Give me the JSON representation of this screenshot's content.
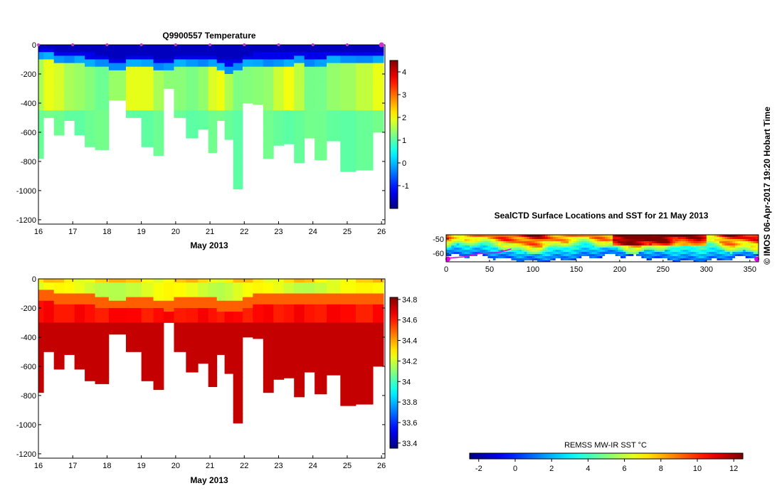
{
  "credit": "© IMOS 06-Apr-2017 19:20 Hobart Time",
  "colors": {
    "magenta": "#e000e0",
    "land": "#ffffff",
    "profile_marker": "#cc33cc"
  },
  "chart_data": [
    {
      "type": "heatmap",
      "id": "temperature_section",
      "title": "Q9900557  Temperature",
      "xlabel": "May 2013",
      "ylabel": "",
      "xlim": [
        16,
        26.1
      ],
      "ylim": [
        -1230,
        0
      ],
      "xticks": [
        16,
        17,
        18,
        19,
        20,
        21,
        22,
        23,
        24,
        25,
        26
      ],
      "yticks": [
        0,
        -200,
        -400,
        -600,
        -800,
        -1000,
        -1200
      ],
      "colorbar": {
        "min": -2,
        "max": 4.5,
        "ticks": [
          -1,
          0,
          1,
          2,
          3,
          4
        ]
      },
      "profile_markers_x": [
        16,
        17,
        18,
        19,
        20,
        21,
        22,
        23,
        24,
        25,
        26
      ],
      "profile_times": [
        16.0,
        16.3,
        16.6,
        16.9,
        17.2,
        17.5,
        17.8,
        18.3,
        18.8,
        19.2,
        19.5,
        19.8,
        20.1,
        20.5,
        20.8,
        21.1,
        21.3,
        21.55,
        21.8,
        22.1,
        22.4,
        22.7,
        23.0,
        23.3,
        23.6,
        23.9,
        24.2,
        24.6,
        25.0,
        25.5,
        26.0
      ],
      "profile_max_depth": [
        -780,
        -500,
        -620,
        -520,
        -620,
        -700,
        -720,
        -380,
        -500,
        -700,
        -760,
        -300,
        -500,
        -640,
        -580,
        -740,
        -520,
        -650,
        -990,
        -400,
        -410,
        -780,
        -690,
        -680,
        -810,
        -640,
        -790,
        -660,
        -870,
        -860,
        -600
      ],
      "thermocline_depth": [
        -80,
        -80,
        -100,
        -100,
        -100,
        -110,
        -120,
        -140,
        -130,
        -130,
        -140,
        -150,
        -120,
        -130,
        -130,
        -130,
        -150,
        -160,
        -150,
        -120,
        -110,
        -110,
        -110,
        -110,
        -100,
        -110,
        -110,
        -100,
        -100,
        -100,
        -100
      ],
      "surface_temp": -1.6,
      "deep_temp": 1.1,
      "core_temp": 1.5
    },
    {
      "type": "heatmap",
      "id": "salinity_section",
      "title": "",
      "xlabel": "May 2013",
      "ylabel": "",
      "xlim": [
        16,
        26.1
      ],
      "ylim": [
        -1230,
        0
      ],
      "xticks": [
        16,
        17,
        18,
        19,
        20,
        21,
        22,
        23,
        24,
        25,
        26
      ],
      "yticks": [
        0,
        -200,
        -400,
        -600,
        -800,
        -1000,
        -1200
      ],
      "colorbar": {
        "min": 33.35,
        "max": 34.82,
        "ticks": [
          33.4,
          33.6,
          33.8,
          34,
          34.2,
          34.4,
          34.6,
          34.8
        ]
      },
      "surface_salinity": 34.3,
      "deep_salinity": 34.72
    },
    {
      "type": "heatmap",
      "id": "sst_map",
      "title": "SealCTD Surface Locations and SST for 21 May 2013",
      "xlabel": "",
      "ylabel": "",
      "xlim": [
        0,
        360
      ],
      "ylim": [
        -66,
        -47
      ],
      "xticks": [
        0,
        50,
        100,
        150,
        200,
        250,
        300,
        350
      ],
      "yticks": [
        -50,
        -60
      ],
      "colorbar": {
        "label": "REMSS MW-IR SST °C",
        "min": -2.5,
        "max": 12.5,
        "ticks": [
          -2,
          0,
          2,
          4,
          6,
          8,
          10,
          12
        ]
      },
      "track_points": [
        [
          0,
          -63.5
        ],
        [
          20,
          -62.5
        ],
        [
          40,
          -60.0
        ],
        [
          60,
          -59.5
        ],
        [
          75,
          -57.0
        ]
      ],
      "track_endpoints": [
        [
          2,
          -64.0
        ],
        [
          358,
          -64.0
        ]
      ]
    }
  ]
}
